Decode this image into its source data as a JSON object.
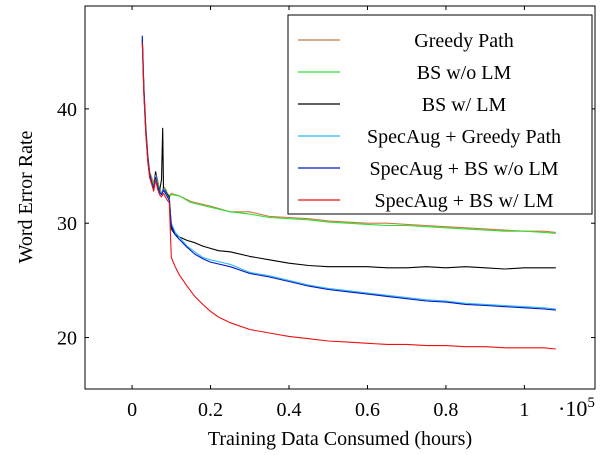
{
  "chart_data": {
    "type": "line",
    "title": "",
    "xlabel": "Training Data Consumed (hours)",
    "ylabel": "Word Error Rate",
    "x_multiplier_label": "·10",
    "x_multiplier_exp": "5",
    "xlim": [
      -0.12,
      1.18
    ],
    "ylim": [
      15.5,
      49
    ],
    "x_ticks": [
      0,
      0.2,
      0.4,
      0.6,
      0.8,
      1
    ],
    "x_tick_labels": [
      "0",
      "0.2",
      "0.4",
      "0.6",
      "0.8",
      "1"
    ],
    "y_ticks": [
      20,
      30,
      40
    ],
    "y_tick_labels": [
      "20",
      "30",
      "40"
    ],
    "grid": false,
    "legend_position": "top-right",
    "series": [
      {
        "name": "Greedy Path",
        "color": "#c87a45",
        "x": [
          0.026,
          0.03,
          0.035,
          0.04,
          0.045,
          0.05,
          0.055,
          0.06,
          0.065,
          0.07,
          0.075,
          0.08,
          0.085,
          0.09,
          0.095,
          0.1,
          0.12,
          0.15,
          0.2,
          0.25,
          0.3,
          0.35,
          0.4,
          0.45,
          0.5,
          0.55,
          0.6,
          0.65,
          0.7,
          0.75,
          0.8,
          0.85,
          0.9,
          0.95,
          1.0,
          1.05,
          1.08
        ],
        "y": [
          46.0,
          42.0,
          38.5,
          36.0,
          34.5,
          34.0,
          33.5,
          34.5,
          33.8,
          33.0,
          32.6,
          33.2,
          33.0,
          32.6,
          32.4,
          32.6,
          32.4,
          31.9,
          31.5,
          31.0,
          31.0,
          30.6,
          30.5,
          30.4,
          30.2,
          30.1,
          30.0,
          30.0,
          29.9,
          29.8,
          29.7,
          29.6,
          29.5,
          29.4,
          29.3,
          29.3,
          29.2
        ]
      },
      {
        "name": "BS w/o LM",
        "color": "#33dd33",
        "x": [
          0.026,
          0.03,
          0.035,
          0.04,
          0.045,
          0.05,
          0.055,
          0.06,
          0.065,
          0.07,
          0.075,
          0.08,
          0.085,
          0.09,
          0.095,
          0.1,
          0.12,
          0.15,
          0.2,
          0.25,
          0.3,
          0.35,
          0.4,
          0.45,
          0.5,
          0.55,
          0.6,
          0.65,
          0.7,
          0.75,
          0.8,
          0.85,
          0.9,
          0.95,
          1.0,
          1.05,
          1.08
        ],
        "y": [
          46.2,
          42.0,
          38.3,
          35.8,
          34.3,
          33.8,
          33.3,
          34.3,
          33.6,
          32.9,
          32.5,
          33.0,
          32.9,
          32.5,
          32.3,
          32.5,
          32.4,
          31.8,
          31.4,
          31.0,
          30.8,
          30.5,
          30.4,
          30.3,
          30.1,
          30.0,
          29.9,
          29.8,
          29.8,
          29.7,
          29.6,
          29.5,
          29.4,
          29.3,
          29.3,
          29.2,
          29.1
        ]
      },
      {
        "name": "BS w/ LM",
        "color": "#000000",
        "x": [
          0.026,
          0.03,
          0.035,
          0.04,
          0.045,
          0.05,
          0.055,
          0.06,
          0.065,
          0.07,
          0.075,
          0.078,
          0.08,
          0.085,
          0.09,
          0.095,
          0.1,
          0.11,
          0.12,
          0.14,
          0.16,
          0.18,
          0.2,
          0.22,
          0.25,
          0.3,
          0.35,
          0.4,
          0.45,
          0.5,
          0.55,
          0.6,
          0.65,
          0.7,
          0.75,
          0.8,
          0.85,
          0.9,
          0.95,
          1.0,
          1.05,
          1.08
        ],
        "y": [
          46.0,
          41.5,
          38.0,
          35.5,
          34.0,
          33.5,
          33.0,
          34.5,
          33.2,
          32.8,
          33.8,
          38.3,
          33.0,
          32.8,
          32.5,
          32.3,
          29.5,
          29.0,
          28.8,
          28.5,
          28.3,
          28.0,
          27.8,
          27.6,
          27.5,
          27.1,
          26.8,
          26.5,
          26.3,
          26.2,
          26.2,
          26.2,
          26.1,
          26.1,
          26.2,
          26.1,
          26.2,
          26.1,
          26.0,
          26.1,
          26.1,
          26.1
        ]
      },
      {
        "name": "SpecAug + Greedy Path",
        "color": "#2fb6ee",
        "x": [
          0.026,
          0.03,
          0.035,
          0.04,
          0.045,
          0.05,
          0.055,
          0.06,
          0.065,
          0.07,
          0.075,
          0.08,
          0.085,
          0.09,
          0.095,
          0.1,
          0.11,
          0.12,
          0.14,
          0.16,
          0.18,
          0.2,
          0.25,
          0.3,
          0.35,
          0.4,
          0.45,
          0.5,
          0.55,
          0.6,
          0.65,
          0.7,
          0.75,
          0.8,
          0.85,
          0.9,
          0.95,
          1.0,
          1.05,
          1.08
        ],
        "y": [
          46.2,
          41.8,
          38.0,
          35.6,
          34.2,
          33.6,
          33.0,
          34.2,
          33.4,
          32.8,
          32.6,
          33.0,
          32.7,
          32.4,
          32.1,
          30.0,
          29.2,
          28.8,
          28.0,
          27.5,
          27.0,
          26.8,
          26.4,
          25.7,
          25.4,
          25.0,
          24.6,
          24.3,
          24.1,
          23.9,
          23.7,
          23.5,
          23.3,
          23.2,
          23.0,
          22.9,
          22.8,
          22.7,
          22.6,
          22.5
        ]
      },
      {
        "name": "SpecAug + BS w/o LM",
        "color": "#0018c8",
        "x": [
          0.026,
          0.03,
          0.035,
          0.04,
          0.045,
          0.05,
          0.055,
          0.06,
          0.065,
          0.07,
          0.075,
          0.08,
          0.085,
          0.09,
          0.095,
          0.1,
          0.11,
          0.12,
          0.14,
          0.16,
          0.18,
          0.2,
          0.25,
          0.3,
          0.35,
          0.4,
          0.45,
          0.5,
          0.55,
          0.6,
          0.65,
          0.7,
          0.75,
          0.8,
          0.85,
          0.9,
          0.95,
          1.0,
          1.05,
          1.08
        ],
        "y": [
          46.4,
          42.0,
          38.2,
          35.8,
          34.3,
          33.6,
          33.0,
          34.0,
          33.3,
          32.7,
          32.5,
          32.9,
          32.6,
          32.3,
          32.0,
          29.8,
          29.0,
          28.6,
          27.9,
          27.3,
          26.9,
          26.6,
          26.2,
          25.6,
          25.3,
          24.9,
          24.5,
          24.2,
          24.0,
          23.8,
          23.6,
          23.4,
          23.2,
          23.1,
          22.9,
          22.8,
          22.7,
          22.6,
          22.5,
          22.4
        ]
      },
      {
        "name": "SpecAug + BS w/ LM",
        "color": "#ee1111",
        "x": [
          0.026,
          0.03,
          0.035,
          0.04,
          0.045,
          0.05,
          0.055,
          0.06,
          0.065,
          0.07,
          0.075,
          0.08,
          0.085,
          0.09,
          0.095,
          0.1,
          0.11,
          0.12,
          0.14,
          0.16,
          0.18,
          0.2,
          0.22,
          0.25,
          0.3,
          0.35,
          0.4,
          0.45,
          0.5,
          0.55,
          0.6,
          0.65,
          0.7,
          0.75,
          0.8,
          0.85,
          0.9,
          0.95,
          1.0,
          1.05,
          1.08
        ],
        "y": [
          45.8,
          41.5,
          37.8,
          35.4,
          34.0,
          33.4,
          32.8,
          33.8,
          33.0,
          32.5,
          32.3,
          32.6,
          32.3,
          32.0,
          31.8,
          27.0,
          26.2,
          25.5,
          24.5,
          23.6,
          22.9,
          22.3,
          21.8,
          21.3,
          20.7,
          20.4,
          20.1,
          19.9,
          19.7,
          19.6,
          19.5,
          19.4,
          19.4,
          19.3,
          19.3,
          19.2,
          19.2,
          19.1,
          19.1,
          19.1,
          19.0
        ]
      }
    ]
  }
}
